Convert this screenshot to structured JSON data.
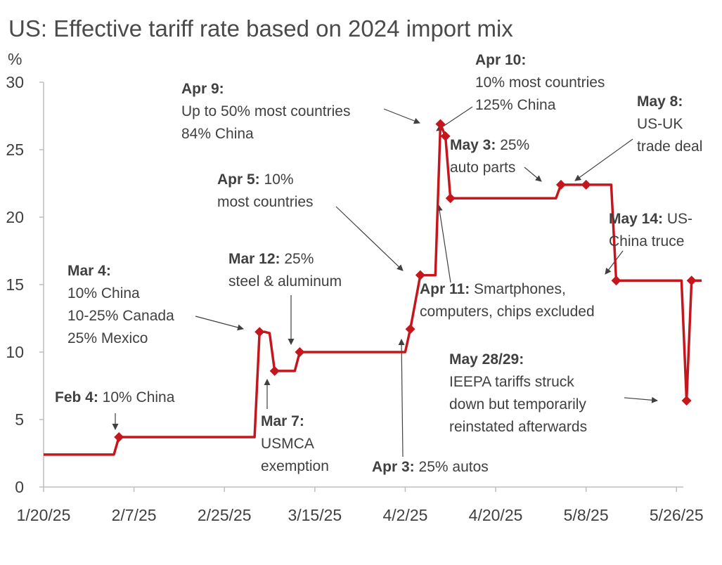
{
  "chart_data": {
    "type": "line",
    "title": "US: Effective tariff rate based on 2024 import mix",
    "ylabel": "%",
    "xlabel": "",
    "ylim": [
      0,
      30
    ],
    "y_ticks": [
      "0",
      "5",
      "10",
      "15",
      "20",
      "25",
      "30"
    ],
    "x_range": [
      "1/20/25",
      "6/2/25"
    ],
    "x_ticks": [
      {
        "date": "2025-01-20",
        "label": "1/20/25"
      },
      {
        "date": "2025-02-07",
        "label": "2/7/25"
      },
      {
        "date": "2025-02-25",
        "label": "2/25/25"
      },
      {
        "date": "2025-03-15",
        "label": "3/15/25"
      },
      {
        "date": "2025-04-02",
        "label": "4/2/25"
      },
      {
        "date": "2025-04-20",
        "label": "4/20/25"
      },
      {
        "date": "2025-05-08",
        "label": "5/8/25"
      },
      {
        "date": "2025-05-26",
        "label": "5/26/25"
      }
    ],
    "grid": false,
    "series": [
      {
        "color": "#c4161c",
        "points": [
          {
            "x": "2025-01-20",
            "y": 2.4
          },
          {
            "x": "2025-02-03",
            "y": 2.4
          },
          {
            "x": "2025-02-04",
            "y": 3.7
          },
          {
            "x": "2025-03-03",
            "y": 3.7
          },
          {
            "x": "2025-03-04",
            "y": 11.5
          },
          {
            "x": "2025-03-05",
            "y": 11.5
          },
          {
            "x": "2025-03-06",
            "y": 11.4
          },
          {
            "x": "2025-03-07",
            "y": 8.6
          },
          {
            "x": "2025-03-11",
            "y": 8.6
          },
          {
            "x": "2025-03-12",
            "y": 10.0
          },
          {
            "x": "2025-04-01",
            "y": 10.0
          },
          {
            "x": "2025-04-02",
            "y": 10.0
          },
          {
            "x": "2025-04-03",
            "y": 11.7
          },
          {
            "x": "2025-04-05",
            "y": 15.7
          },
          {
            "x": "2025-04-08",
            "y": 15.7
          },
          {
            "x": "2025-04-09",
            "y": 26.9
          },
          {
            "x": "2025-04-10",
            "y": 26.0
          },
          {
            "x": "2025-04-11",
            "y": 21.4
          },
          {
            "x": "2025-05-02",
            "y": 21.4
          },
          {
            "x": "2025-05-03",
            "y": 22.4
          },
          {
            "x": "2025-05-08",
            "y": 22.4
          },
          {
            "x": "2025-05-13",
            "y": 22.4
          },
          {
            "x": "2025-05-14",
            "y": 15.3
          },
          {
            "x": "2025-05-27",
            "y": 15.3
          },
          {
            "x": "2025-05-28",
            "y": 6.4
          },
          {
            "x": "2025-05-29",
            "y": 15.3
          },
          {
            "x": "2025-05-31",
            "y": 15.3
          }
        ],
        "markers": [
          {
            "x": "2025-02-04",
            "y": 3.7
          },
          {
            "x": "2025-03-04",
            "y": 11.5
          },
          {
            "x": "2025-03-07",
            "y": 8.6
          },
          {
            "x": "2025-03-12",
            "y": 10.0
          },
          {
            "x": "2025-04-03",
            "y": 11.7
          },
          {
            "x": "2025-04-05",
            "y": 15.7
          },
          {
            "x": "2025-04-09",
            "y": 26.9
          },
          {
            "x": "2025-04-10",
            "y": 26.0
          },
          {
            "x": "2025-04-11",
            "y": 21.4
          },
          {
            "x": "2025-05-03",
            "y": 22.4
          },
          {
            "x": "2025-05-08",
            "y": 22.4
          },
          {
            "x": "2025-05-14",
            "y": 15.3
          },
          {
            "x": "2025-05-28",
            "y": 6.4
          },
          {
            "x": "2025-05-29",
            "y": 15.3
          }
        ]
      }
    ],
    "annotations": [
      {
        "id": "feb4",
        "bold": "Feb 4:",
        "lines": [
          "10% China"
        ]
      },
      {
        "id": "mar4",
        "bold": "Mar 4:",
        "lines": [
          "10% China",
          "10-25% Canada",
          "25% Mexico"
        ]
      },
      {
        "id": "mar7",
        "bold": "Mar 7:",
        "lines": [
          "USMCA",
          "exemption"
        ]
      },
      {
        "id": "mar12",
        "bold": "Mar 12:",
        "lines": [
          "25%",
          "steel & aluminum"
        ]
      },
      {
        "id": "apr3",
        "bold": "Apr 3:",
        "lines": [
          "25% autos"
        ]
      },
      {
        "id": "apr5",
        "bold": "Apr 5:",
        "lines": [
          "10%",
          "most countries"
        ]
      },
      {
        "id": "apr9",
        "bold": "Apr 9:",
        "lines": [
          "Up to 50% most countries",
          "84% China"
        ]
      },
      {
        "id": "apr10",
        "bold": "Apr 10:",
        "lines": [
          "10% most countries",
          "125% China"
        ]
      },
      {
        "id": "apr11",
        "bold": "Apr 11:",
        "lines": [
          "Smartphones,",
          "computers, chips excluded"
        ]
      },
      {
        "id": "may3",
        "bold": "May 3:",
        "lines": [
          "25%",
          "auto parts"
        ]
      },
      {
        "id": "may8",
        "bold": "May 8:",
        "lines": [
          "US-UK",
          "trade deal"
        ]
      },
      {
        "id": "may14",
        "bold": "May 14:",
        "lines": [
          "US-",
          "China truce"
        ]
      },
      {
        "id": "may2829",
        "bold": "May 28/29:",
        "lines": [
          "IEEPA tariffs struck",
          "down but temporarily",
          "reinstated afterwards"
        ]
      }
    ]
  }
}
